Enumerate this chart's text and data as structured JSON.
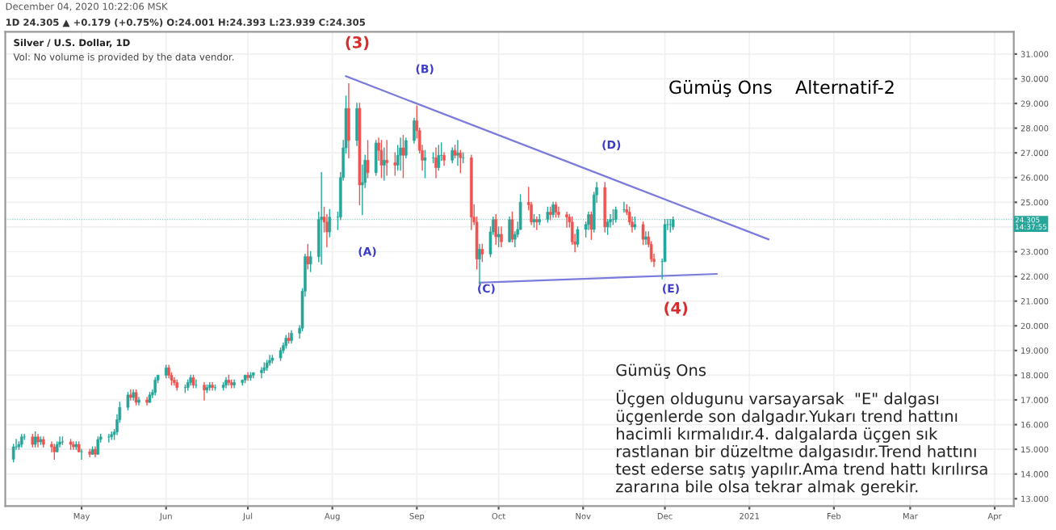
{
  "chart_data": {
    "type": "candlestick",
    "title": "Gümüş Ons    Alternatif-2",
    "x": [
      "2020-04-06",
      "2020-04-07",
      "2020-04-08",
      "2020-04-09",
      "2020-04-10",
      "2020-04-13",
      "2020-04-14",
      "2020-04-15",
      "2020-04-16",
      "2020-04-17",
      "2020-04-20",
      "2020-04-21",
      "2020-04-22",
      "2020-04-23",
      "2020-04-24",
      "2020-04-27",
      "2020-04-28",
      "2020-04-29",
      "2020-04-30",
      "2020-05-01",
      "2020-05-04",
      "2020-05-05",
      "2020-05-06",
      "2020-05-07",
      "2020-05-08",
      "2020-05-11",
      "2020-05-12",
      "2020-05-13",
      "2020-05-14",
      "2020-05-15",
      "2020-05-18",
      "2020-05-19",
      "2020-05-20",
      "2020-05-21",
      "2020-05-22",
      "2020-05-25",
      "2020-05-26",
      "2020-05-27",
      "2020-05-28",
      "2020-05-29",
      "2020-06-01",
      "2020-06-02",
      "2020-06-03",
      "2020-06-04",
      "2020-06-05",
      "2020-06-08",
      "2020-06-09",
      "2020-06-10",
      "2020-06-11",
      "2020-06-12",
      "2020-06-15",
      "2020-06-16",
      "2020-06-17",
      "2020-06-18",
      "2020-06-19",
      "2020-06-22",
      "2020-06-23",
      "2020-06-24",
      "2020-06-25",
      "2020-06-26",
      "2020-06-29",
      "2020-06-30",
      "2020-07-01",
      "2020-07-02",
      "2020-07-03",
      "2020-07-06",
      "2020-07-07",
      "2020-07-08",
      "2020-07-09",
      "2020-07-10",
      "2020-07-13",
      "2020-07-14",
      "2020-07-15",
      "2020-07-16",
      "2020-07-17",
      "2020-07-20",
      "2020-07-21",
      "2020-07-22",
      "2020-07-23",
      "2020-07-24",
      "2020-07-27",
      "2020-07-28",
      "2020-07-29",
      "2020-07-30",
      "2020-07-31",
      "2020-08-03",
      "2020-08-04",
      "2020-08-05",
      "2020-08-06",
      "2020-08-07",
      "2020-08-10",
      "2020-08-11",
      "2020-08-12",
      "2020-08-13",
      "2020-08-14",
      "2020-08-17",
      "2020-08-18",
      "2020-08-19",
      "2020-08-20",
      "2020-08-21",
      "2020-08-24",
      "2020-08-25",
      "2020-08-26",
      "2020-08-27",
      "2020-08-28",
      "2020-08-31",
      "2020-09-01",
      "2020-09-02",
      "2020-09-03",
      "2020-09-04",
      "2020-09-07",
      "2020-09-08",
      "2020-09-09",
      "2020-09-10",
      "2020-09-11",
      "2020-09-14",
      "2020-09-15",
      "2020-09-16",
      "2020-09-17",
      "2020-09-18",
      "2020-09-21",
      "2020-09-22",
      "2020-09-23",
      "2020-09-24",
      "2020-09-25",
      "2020-09-28",
      "2020-09-29",
      "2020-09-30",
      "2020-10-01",
      "2020-10-02",
      "2020-10-05",
      "2020-10-06",
      "2020-10-07",
      "2020-10-08",
      "2020-10-09",
      "2020-10-12",
      "2020-10-13",
      "2020-10-14",
      "2020-10-15",
      "2020-10-16",
      "2020-10-19",
      "2020-10-20",
      "2020-10-21",
      "2020-10-22",
      "2020-10-23",
      "2020-10-26",
      "2020-10-27",
      "2020-10-28",
      "2020-10-29",
      "2020-10-30",
      "2020-11-02",
      "2020-11-03",
      "2020-11-04",
      "2020-11-05",
      "2020-11-06",
      "2020-11-09",
      "2020-11-10",
      "2020-11-11",
      "2020-11-12",
      "2020-11-13",
      "2020-11-16",
      "2020-11-17",
      "2020-11-18",
      "2020-11-19",
      "2020-11-20",
      "2020-11-23",
      "2020-11-24",
      "2020-11-25",
      "2020-11-26",
      "2020-11-27",
      "2020-11-30",
      "2020-12-01",
      "2020-12-02",
      "2020-12-03",
      "2020-12-04"
    ],
    "ohlc": [
      [
        14.6,
        15.2,
        14.5,
        15.1
      ],
      [
        15.1,
        15.4,
        15.0,
        15.1
      ],
      [
        15.1,
        15.3,
        15.0,
        15.2
      ],
      [
        15.2,
        15.6,
        15.1,
        15.5
      ],
      [
        15.5,
        15.6,
        15.4,
        15.5
      ],
      [
        15.5,
        15.6,
        15.1,
        15.2
      ],
      [
        15.2,
        15.7,
        15.1,
        15.5
      ],
      [
        15.5,
        15.6,
        15.1,
        15.3
      ],
      [
        15.3,
        15.5,
        15.2,
        15.4
      ],
      [
        15.4,
        15.5,
        15.1,
        15.2
      ],
      [
        15.2,
        15.3,
        14.9,
        15.1
      ],
      [
        15.1,
        15.2,
        14.6,
        14.9
      ],
      [
        14.9,
        15.3,
        14.9,
        15.2
      ],
      [
        15.2,
        15.5,
        15.1,
        15.3
      ],
      [
        15.3,
        15.5,
        15.2,
        15.3
      ],
      [
        15.3,
        15.4,
        15.0,
        15.2
      ],
      [
        15.2,
        15.3,
        15.0,
        15.1
      ],
      [
        15.1,
        15.3,
        15.0,
        15.2
      ],
      [
        15.2,
        15.3,
        14.9,
        14.9
      ],
      [
        14.9,
        15.0,
        14.6,
        14.9
      ],
      [
        14.9,
        15.0,
        14.7,
        14.8
      ],
      [
        14.8,
        15.1,
        14.8,
        15.0
      ],
      [
        15.0,
        15.1,
        14.7,
        14.8
      ],
      [
        14.8,
        15.5,
        14.8,
        15.4
      ],
      [
        15.4,
        15.6,
        15.3,
        15.5
      ],
      [
        15.5,
        15.6,
        15.3,
        15.5
      ],
      [
        15.5,
        15.7,
        15.4,
        15.6
      ],
      [
        15.6,
        15.8,
        15.4,
        15.7
      ],
      [
        15.7,
        16.4,
        15.6,
        16.2
      ],
      [
        16.2,
        16.9,
        16.1,
        16.7
      ],
      [
        16.7,
        17.3,
        16.6,
        17.2
      ],
      [
        17.2,
        17.4,
        17.0,
        17.1
      ],
      [
        17.1,
        17.4,
        17.0,
        17.3
      ],
      [
        17.3,
        17.4,
        16.8,
        16.9
      ],
      [
        16.9,
        17.1,
        16.8,
        17.0
      ],
      [
        17.0,
        17.1,
        16.8,
        16.9
      ],
      [
        16.9,
        17.3,
        16.9,
        17.2
      ],
      [
        17.2,
        17.4,
        17.1,
        17.3
      ],
      [
        17.3,
        17.9,
        17.2,
        17.8
      ],
      [
        17.8,
        18.0,
        17.7,
        18.0
      ],
      [
        18.0,
        18.4,
        17.9,
        18.3
      ],
      [
        18.3,
        18.4,
        17.9,
        18.0
      ],
      [
        18.0,
        18.1,
        17.6,
        17.8
      ],
      [
        17.8,
        17.9,
        17.6,
        17.7
      ],
      [
        17.7,
        17.8,
        17.4,
        17.5
      ],
      [
        17.5,
        17.6,
        17.3,
        17.5
      ],
      [
        17.5,
        17.8,
        17.4,
        17.7
      ],
      [
        17.7,
        18.0,
        17.6,
        17.9
      ],
      [
        17.9,
        18.0,
        17.5,
        17.6
      ],
      [
        17.6,
        17.8,
        17.5,
        17.6
      ],
      [
        17.6,
        17.7,
        17.0,
        17.4
      ],
      [
        17.4,
        17.6,
        17.3,
        17.5
      ],
      [
        17.5,
        17.7,
        17.4,
        17.6
      ],
      [
        17.6,
        17.7,
        17.4,
        17.5
      ],
      [
        17.5,
        17.6,
        17.4,
        17.5
      ],
      [
        17.5,
        17.7,
        17.4,
        17.6
      ],
      [
        17.6,
        17.9,
        17.5,
        17.8
      ],
      [
        17.8,
        18.0,
        17.6,
        17.7
      ],
      [
        17.7,
        17.8,
        17.5,
        17.6
      ],
      [
        17.6,
        17.8,
        17.5,
        17.7
      ],
      [
        17.7,
        17.8,
        17.6,
        17.8
      ],
      [
        17.8,
        18.0,
        17.7,
        18.0
      ],
      [
        18.0,
        18.1,
        17.8,
        17.9
      ],
      [
        17.9,
        18.1,
        17.8,
        18.0
      ],
      [
        18.0,
        18.1,
        17.9,
        18.1
      ],
      [
        18.1,
        18.3,
        17.9,
        18.2
      ],
      [
        18.2,
        18.5,
        18.1,
        18.3
      ],
      [
        18.3,
        18.6,
        18.2,
        18.5
      ],
      [
        18.5,
        18.8,
        18.4,
        18.6
      ],
      [
        18.6,
        18.8,
        18.5,
        18.7
      ],
      [
        18.7,
        19.1,
        18.6,
        19.0
      ],
      [
        19.0,
        19.3,
        18.9,
        19.2
      ],
      [
        19.2,
        19.6,
        19.1,
        19.5
      ],
      [
        19.5,
        19.7,
        19.3,
        19.4
      ],
      [
        19.4,
        19.8,
        19.3,
        19.7
      ],
      [
        19.7,
        20.0,
        19.5,
        19.9
      ],
      [
        19.9,
        21.5,
        19.8,
        21.4
      ],
      [
        21.4,
        22.9,
        21.2,
        22.8
      ],
      [
        22.8,
        23.3,
        22.3,
        22.5
      ],
      [
        22.5,
        23.0,
        22.2,
        22.8
      ],
      [
        22.8,
        24.6,
        22.6,
        24.3
      ],
      [
        24.3,
        26.2,
        22.5,
        24.4
      ],
      [
        24.4,
        24.8,
        23.8,
        24.2
      ],
      [
        24.2,
        24.5,
        23.2,
        23.8
      ],
      [
        23.8,
        24.7,
        23.6,
        24.4
      ],
      [
        24.4,
        24.6,
        23.9,
        24.4
      ],
      [
        24.4,
        26.2,
        24.3,
        26.0
      ],
      [
        26.0,
        27.5,
        25.9,
        27.2
      ],
      [
        27.2,
        29.3,
        27.0,
        28.8
      ],
      [
        28.8,
        29.8,
        26.8,
        27.5
      ],
      [
        27.5,
        29.0,
        27.3,
        28.8
      ],
      [
        28.8,
        29.0,
        24.9,
        25.7
      ],
      [
        25.7,
        26.5,
        24.5,
        25.8
      ],
      [
        25.8,
        26.9,
        25.6,
        26.7
      ],
      [
        26.7,
        27.5,
        26.0,
        26.2
      ],
      [
        26.2,
        27.5,
        26.1,
        27.4
      ],
      [
        27.4,
        27.6,
        26.7,
        27.1
      ],
      [
        27.1,
        27.5,
        26.0,
        26.5
      ],
      [
        26.5,
        27.2,
        25.9,
        26.7
      ],
      [
        26.7,
        27.5,
        26.1,
        26.6
      ],
      [
        26.6,
        27.0,
        26.1,
        26.5
      ],
      [
        26.5,
        27.3,
        26.3,
        26.9
      ],
      [
        26.9,
        27.6,
        26.3,
        27.2
      ],
      [
        27.2,
        27.7,
        26.0,
        26.9
      ],
      [
        26.9,
        27.6,
        26.8,
        27.5
      ],
      [
        27.5,
        28.4,
        27.4,
        28.3
      ],
      [
        28.3,
        28.9,
        27.6,
        27.9
      ],
      [
        27.9,
        28.0,
        27.0,
        27.1
      ],
      [
        27.1,
        27.3,
        26.3,
        26.7
      ],
      [
        26.7,
        27.1,
        26.0,
        26.8
      ],
      [
        26.8,
        27.0,
        26.6,
        26.8
      ],
      [
        26.8,
        27.2,
        26.0,
        26.4
      ],
      [
        26.4,
        27.3,
        26.3,
        26.9
      ],
      [
        26.9,
        27.4,
        26.7,
        26.9
      ],
      [
        26.9,
        27.0,
        26.5,
        26.7
      ],
      [
        26.7,
        27.2,
        26.6,
        27.1
      ],
      [
        27.1,
        27.3,
        26.8,
        26.9
      ],
      [
        26.9,
        27.5,
        26.5,
        27.0
      ],
      [
        27.0,
        27.1,
        26.2,
        26.8
      ],
      [
        26.8,
        27.0,
        26.6,
        26.8
      ],
      [
        26.8,
        26.9,
        23.9,
        24.4
      ],
      [
        24.4,
        24.9,
        24.1,
        24.2
      ],
      [
        24.2,
        24.4,
        22.3,
        22.7
      ],
      [
        22.7,
        23.3,
        21.7,
        23.1
      ],
      [
        23.1,
        23.3,
        22.6,
        22.9
      ],
      [
        22.9,
        24.0,
        22.8,
        23.8
      ],
      [
        23.8,
        24.4,
        23.7,
        24.3
      ],
      [
        24.3,
        24.5,
        23.3,
        23.6
      ],
      [
        23.6,
        24.0,
        23.2,
        23.7
      ],
      [
        23.7,
        24.0,
        23.2,
        23.4
      ],
      [
        23.4,
        24.4,
        23.4,
        24.3
      ],
      [
        24.3,
        24.6,
        23.4,
        23.5
      ],
      [
        23.5,
        23.8,
        23.2,
        23.7
      ],
      [
        23.7,
        24.2,
        23.6,
        23.9
      ],
      [
        23.9,
        25.3,
        23.9,
        25.0
      ],
      [
        25.0,
        25.6,
        24.7,
        24.9
      ],
      [
        24.9,
        25.0,
        24.1,
        24.2
      ],
      [
        24.2,
        24.5,
        24.0,
        24.3
      ],
      [
        24.3,
        24.4,
        23.9,
        24.2
      ],
      [
        24.2,
        24.5,
        24.1,
        24.3
      ],
      [
        24.3,
        24.8,
        24.2,
        24.6
      ],
      [
        24.6,
        24.8,
        24.3,
        24.5
      ],
      [
        24.5,
        25.0,
        24.4,
        24.9
      ],
      [
        24.9,
        25.0,
        24.4,
        24.6
      ],
      [
        24.6,
        24.8,
        24.4,
        24.5
      ],
      [
        24.5,
        24.6,
        24.0,
        24.4
      ],
      [
        24.4,
        24.5,
        24.0,
        24.2
      ],
      [
        24.2,
        24.4,
        23.3,
        23.4
      ],
      [
        23.4,
        23.7,
        23.0,
        23.3
      ],
      [
        23.3,
        24.0,
        23.2,
        23.9
      ],
      [
        23.9,
        24.2,
        23.6,
        24.1
      ],
      [
        24.1,
        24.6,
        23.9,
        24.5
      ],
      [
        24.5,
        24.6,
        23.5,
        23.9
      ],
      [
        23.9,
        25.4,
        23.8,
        25.3
      ],
      [
        25.3,
        25.8,
        25.0,
        25.6
      ],
      [
        25.6,
        25.8,
        23.8,
        24.0
      ],
      [
        24.0,
        24.3,
        23.7,
        24.2
      ],
      [
        24.2,
        24.5,
        24.0,
        24.3
      ],
      [
        24.3,
        24.7,
        24.1,
        24.3
      ],
      [
        24.3,
        24.8,
        24.2,
        24.7
      ],
      [
        24.7,
        25.0,
        24.6,
        24.7
      ],
      [
        24.7,
        24.9,
        24.5,
        24.6
      ],
      [
        24.6,
        24.8,
        24.1,
        24.2
      ],
      [
        24.2,
        24.4,
        23.8,
        24.0
      ],
      [
        24.0,
        24.4,
        23.9,
        24.1
      ],
      [
        24.1,
        24.2,
        23.3,
        23.5
      ],
      [
        23.5,
        23.8,
        23.3,
        23.6
      ],
      [
        23.6,
        23.8,
        23.2,
        23.3
      ],
      [
        23.3,
        23.4,
        22.6,
        22.7
      ],
      [
        22.7,
        22.9,
        22.4,
        22.6
      ],
      [
        22.6,
        22.7,
        21.9,
        22.6
      ],
      [
        22.6,
        24.3,
        22.6,
        24.1
      ],
      [
        24.1,
        24.3,
        23.9,
        24.1
      ],
      [
        24.1,
        24.3,
        23.8,
        24.1
      ],
      [
        24.0,
        24.4,
        23.9,
        24.3
      ]
    ],
    "colors": [
      "#26a69a",
      "#26a69a",
      "#26a69a",
      "#26a69a",
      "#26a69a",
      "#ef5350",
      "#26a69a",
      "#ef5350",
      "#26a69a",
      "#ef5350",
      "#ef5350",
      "#ef5350",
      "#26a69a",
      "#26a69a",
      "#26a69a",
      "#ef5350",
      "#ef5350",
      "#26a69a",
      "#ef5350",
      "#26a69a",
      "#ef5350",
      "#26a69a",
      "#ef5350",
      "#26a69a",
      "#26a69a",
      "#26a69a",
      "#26a69a",
      "#26a69a",
      "#26a69a",
      "#26a69a",
      "#26a69a",
      "#ef5350",
      "#26a69a",
      "#ef5350",
      "#26a69a",
      "#ef5350",
      "#26a69a",
      "#26a69a",
      "#26a69a",
      "#26a69a",
      "#26a69a",
      "#ef5350",
      "#ef5350",
      "#ef5350",
      "#ef5350",
      "#26a69a",
      "#26a69a",
      "#26a69a",
      "#ef5350",
      "#26a69a",
      "#ef5350",
      "#26a69a",
      "#26a69a",
      "#ef5350",
      "#26a69a",
      "#26a69a",
      "#26a69a",
      "#ef5350",
      "#ef5350",
      "#26a69a",
      "#26a69a",
      "#26a69a",
      "#ef5350",
      "#26a69a",
      "#26a69a",
      "#26a69a",
      "#26a69a",
      "#26a69a",
      "#26a69a",
      "#26a69a",
      "#26a69a",
      "#26a69a",
      "#26a69a",
      "#ef5350",
      "#26a69a",
      "#26a69a",
      "#26a69a",
      "#26a69a",
      "#ef5350",
      "#26a69a",
      "#26a69a",
      "#26a69a",
      "#ef5350",
      "#ef5350",
      "#26a69a",
      "#26a69a",
      "#26a69a",
      "#26a69a",
      "#26a69a",
      "#ef5350",
      "#26a69a",
      "#ef5350",
      "#26a69a",
      "#26a69a",
      "#ef5350",
      "#26a69a",
      "#ef5350",
      "#ef5350",
      "#26a69a",
      "#ef5350",
      "#ef5350",
      "#26a69a",
      "#26a69a",
      "#ef5350",
      "#26a69a",
      "#26a69a",
      "#ef5350",
      "#ef5350",
      "#ef5350",
      "#26a69a",
      "#26a69a",
      "#ef5350",
      "#26a69a",
      "#26a69a",
      "#ef5350",
      "#26a69a",
      "#ef5350",
      "#26a69a",
      "#ef5350",
      "#26a69a",
      "#ef5350",
      "#ef5350",
      "#ef5350",
      "#26a69a",
      "#ef5350",
      "#26a69a",
      "#26a69a",
      "#ef5350",
      "#26a69a",
      "#ef5350",
      "#26a69a",
      "#ef5350",
      "#26a69a",
      "#26a69a",
      "#26a69a",
      "#ef5350",
      "#ef5350",
      "#26a69a",
      "#ef5350",
      "#26a69a",
      "#26a69a",
      "#ef5350",
      "#26a69a",
      "#ef5350",
      "#ef5350",
      "#ef5350",
      "#ef5350",
      "#ef5350",
      "#ef5350",
      "#26a69a",
      "#26a69a",
      "#26a69a",
      "#ef5350",
      "#26a69a",
      "#26a69a",
      "#ef5350",
      "#26a69a",
      "#26a69a",
      "#26a69a",
      "#26a69a",
      "#26a69a",
      "#ef5350",
      "#ef5350",
      "#ef5350",
      "#26a69a",
      "#ef5350",
      "#26a69a",
      "#ef5350",
      "#ef5350",
      "#ef5350",
      "#26a69a",
      "#26a69a",
      "#26a69a",
      "#26a69a",
      "#26a69a"
    ],
    "series": [
      {
        "type": "line",
        "color": "#7b7bdc",
        "x": [
          "2020-08-06",
          "2021-01-08"
        ],
        "values": [
          30.1,
          23.5
        ]
      },
      {
        "type": "line",
        "color": "#7b7bdc",
        "x": [
          "2020-09-24",
          "2020-12-20"
        ],
        "values": [
          21.75,
          22.1
        ]
      }
    ],
    "xlim": [
      "2020-04-03",
      "2021-04-08"
    ],
    "xticks": [
      {
        "value": "2020-05-01",
        "label": "May"
      },
      {
        "value": "2020-06-01",
        "label": "Jun"
      },
      {
        "value": "2020-07-01",
        "label": "Jul"
      },
      {
        "value": "2020-08-01",
        "label": "Aug"
      },
      {
        "value": "2020-09-01",
        "label": "Sep"
      },
      {
        "value": "2020-10-01",
        "label": "Oct"
      },
      {
        "value": "2020-11-01",
        "label": "Nov"
      },
      {
        "value": "2020-12-01",
        "label": "Dec"
      },
      {
        "value": "2021-01-01",
        "label": "2021"
      },
      {
        "value": "2021-02-01",
        "label": "Feb"
      },
      {
        "value": "2021-03-01",
        "label": "Mar"
      },
      {
        "value": "2021-04-01",
        "label": "Apr"
      }
    ],
    "ylim": [
      12.7,
      31.9
    ],
    "yticks": [
      {
        "value": 13,
        "label": "13.000"
      },
      {
        "value": 14,
        "label": "14.000"
      },
      {
        "value": 15,
        "label": "15.000"
      },
      {
        "value": 16,
        "label": "16.000"
      },
      {
        "value": 17,
        "label": "17.000"
      },
      {
        "value": 18,
        "label": "18.000"
      },
      {
        "value": 19,
        "label": "19.000"
      },
      {
        "value": 20,
        "label": "20.000"
      },
      {
        "value": 21,
        "label": "21.000"
      },
      {
        "value": 22,
        "label": "22.000"
      },
      {
        "value": 23,
        "label": "23.000"
      },
      {
        "value": 24,
        "label": null
      },
      {
        "value": 25,
        "label": "25.000"
      },
      {
        "value": 26,
        "label": "26.000"
      },
      {
        "value": 27,
        "label": "27.000"
      },
      {
        "value": 28,
        "label": "28.000"
      },
      {
        "value": 29,
        "label": "29.000"
      },
      {
        "value": 30,
        "label": "30.000"
      },
      {
        "value": 31,
        "label": "31.000"
      }
    ],
    "grid": true,
    "ref_lines": [
      {
        "axis": "y",
        "value": 24.305,
        "label": "24.305\n14:37:55",
        "color": "#26a69a",
        "line_style": "dotted"
      }
    ],
    "annotations": [
      "(3)",
      "(B)",
      "(A)",
      "(C)",
      "(D)",
      "(E)",
      "(4)",
      "December 04, 2020 10:22:06 MSK",
      "1D 24.305 ▲ +0.179 (+0.75%) O:24.001 H:24.393 L:23.939 C:24.305",
      "Silver / U.S. Dollar, 1D",
      "Vol: No volume is provided by the data vendor.",
      "Gümüş Ons",
      "Üçgen oldugunu varsayarsak  \"E\" dalgası\nüçgenlerde son dalgadır.Yukarı trend hattını\nhacimli kırmalıdır.4. dalgalarda üçgen sık\nrastlanan bir düzeltme dalgasıdır.Trend hattını\ntest ederse satış yapılır.Ama trend hattı kırılırsa\nzararına bile olsa tekrar almak gerekir."
    ]
  }
}
